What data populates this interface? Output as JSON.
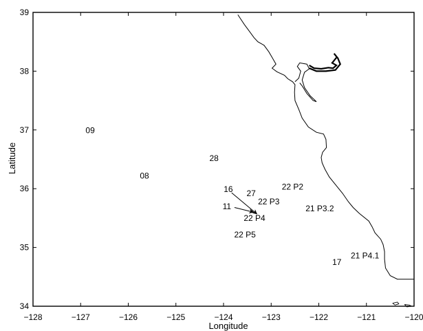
{
  "axes": {
    "xlabel": "Longitude",
    "ylabel": "Latitude",
    "xlim": [
      -128,
      -120
    ],
    "ylim": [
      34,
      39
    ],
    "x_ticks": [
      {
        "value": -128,
        "label": "−128"
      },
      {
        "value": -127,
        "label": "−127"
      },
      {
        "value": -126,
        "label": "−126"
      },
      {
        "value": -125,
        "label": "−125"
      },
      {
        "value": -124,
        "label": "−124"
      },
      {
        "value": -123,
        "label": "−123"
      },
      {
        "value": -122,
        "label": "−122"
      },
      {
        "value": -121,
        "label": "−121"
      },
      {
        "value": -120,
        "label": "−120"
      }
    ],
    "y_ticks": [
      {
        "value": 34,
        "label": "34"
      },
      {
        "value": 35,
        "label": "35"
      },
      {
        "value": 36,
        "label": "36"
      },
      {
        "value": 37,
        "label": "37"
      },
      {
        "value": 38,
        "label": "38"
      },
      {
        "value": 39,
        "label": "39"
      }
    ]
  },
  "stations": [
    {
      "id": "09",
      "label": "09",
      "lon": -126.8,
      "lat": 36.99
    },
    {
      "id": "08",
      "label": "08",
      "lon": -125.66,
      "lat": 36.22
    },
    {
      "id": "28",
      "label": "28",
      "lon": -124.2,
      "lat": 36.52
    },
    {
      "id": "16",
      "label": "16",
      "lon": -123.9,
      "lat": 35.99
    },
    {
      "id": "27",
      "label": "27",
      "lon": -123.42,
      "lat": 35.92
    },
    {
      "id": "22P2",
      "label": "22 P2",
      "lon": -122.55,
      "lat": 36.03
    },
    {
      "id": "22P3",
      "label": "22 P3",
      "lon": -123.05,
      "lat": 35.78
    },
    {
      "id": "11",
      "label": "11",
      "lon": -123.93,
      "lat": 35.7
    },
    {
      "id": "22P4",
      "label": "22 P4",
      "lon": -123.35,
      "lat": 35.5
    },
    {
      "id": "21P3.2",
      "label": "21 P3.2",
      "lon": -121.98,
      "lat": 35.66
    },
    {
      "id": "22P5",
      "label": "22 P5",
      "lon": -123.55,
      "lat": 35.22
    },
    {
      "id": "21P4.1",
      "label": "21 P4.1",
      "lon": -121.03,
      "lat": 34.86
    },
    {
      "id": "17",
      "label": "17",
      "lon": -121.62,
      "lat": 34.75
    }
  ],
  "arrows": [
    {
      "from": {
        "lon": -123.83,
        "lat": 35.93
      },
      "to": {
        "lon": -123.3,
        "lat": 35.57
      }
    },
    {
      "from": {
        "lon": -123.77,
        "lat": 35.68
      },
      "to": {
        "lon": -123.37,
        "lat": 35.6
      }
    }
  ],
  "coastline": [
    [
      -123.7,
      38.96
    ],
    [
      -123.65,
      38.9
    ],
    [
      -123.56,
      38.79
    ],
    [
      -123.45,
      38.67
    ],
    [
      -123.36,
      38.57
    ],
    [
      -123.28,
      38.5
    ],
    [
      -123.15,
      38.44
    ],
    [
      -123.05,
      38.33
    ],
    [
      -122.97,
      38.22
    ],
    [
      -122.9,
      38.12
    ],
    [
      -122.98,
      38.05
    ],
    [
      -122.88,
      37.99
    ],
    [
      -122.72,
      37.93
    ],
    [
      -122.65,
      37.87
    ],
    [
      -122.55,
      37.82
    ],
    [
      -122.5,
      37.77
    ],
    [
      -122.51,
      37.64
    ],
    [
      -122.5,
      37.5
    ],
    [
      -122.42,
      37.35
    ],
    [
      -122.35,
      37.2
    ],
    [
      -122.22,
      37.05
    ],
    [
      -122.05,
      36.96
    ],
    [
      -121.9,
      36.93
    ],
    [
      -121.85,
      36.84
    ],
    [
      -121.84,
      36.7
    ],
    [
      -121.92,
      36.62
    ],
    [
      -121.95,
      36.53
    ],
    [
      -121.93,
      36.44
    ],
    [
      -121.87,
      36.33
    ],
    [
      -121.78,
      36.2
    ],
    [
      -121.62,
      36.04
    ],
    [
      -121.5,
      35.92
    ],
    [
      -121.38,
      35.78
    ],
    [
      -121.28,
      35.68
    ],
    [
      -121.15,
      35.58
    ],
    [
      -120.95,
      35.45
    ],
    [
      -120.88,
      35.35
    ],
    [
      -120.82,
      35.25
    ],
    [
      -120.7,
      35.14
    ],
    [
      -120.65,
      35.05
    ],
    [
      -120.62,
      34.93
    ],
    [
      -120.62,
      34.8
    ],
    [
      -120.6,
      34.65
    ],
    [
      -120.5,
      34.52
    ],
    [
      -120.35,
      34.46
    ],
    [
      -120.2,
      34.46
    ],
    [
      -120.0,
      34.46
    ]
  ],
  "bay": [
    [
      -122.5,
      37.82
    ],
    [
      -122.42,
      37.88
    ],
    [
      -122.38,
      38.0
    ],
    [
      -122.45,
      38.08
    ],
    [
      -122.4,
      38.14
    ],
    [
      -122.25,
      38.12
    ],
    [
      -122.2,
      38.04
    ],
    [
      -122.3,
      37.98
    ],
    [
      -122.35,
      37.85
    ],
    [
      -122.3,
      37.72
    ],
    [
      -122.18,
      37.58
    ],
    [
      -122.05,
      37.48
    ],
    [
      -122.12,
      37.5
    ],
    [
      -122.25,
      37.62
    ],
    [
      -122.35,
      37.75
    ],
    [
      -122.4,
      37.8
    ]
  ],
  "delta": [
    [
      -122.2,
      38.1
    ],
    [
      -122.1,
      38.05
    ],
    [
      -121.95,
      38.04
    ],
    [
      -121.8,
      38.06
    ],
    [
      -121.7,
      38.05
    ],
    [
      -121.63,
      38.1
    ],
    [
      -121.72,
      38.14
    ],
    [
      -121.62,
      38.24
    ],
    [
      -121.68,
      38.3
    ],
    [
      -121.6,
      38.22
    ],
    [
      -121.55,
      38.12
    ],
    [
      -121.65,
      38.02
    ],
    [
      -121.85,
      38.0
    ],
    [
      -122.05,
      38.0
    ],
    [
      -122.2,
      38.05
    ]
  ],
  "islands": [
    [
      [
        -120.45,
        34.05
      ],
      [
        -120.35,
        34.07
      ],
      [
        -120.32,
        34.04
      ],
      [
        -120.4,
        34.02
      ],
      [
        -120.45,
        34.05
      ]
    ],
    [
      [
        -120.2,
        34.03
      ],
      [
        -120.1,
        34.02
      ],
      [
        -120.05,
        34.0
      ],
      [
        -120.15,
        33.99
      ],
      [
        -120.2,
        34.03
      ]
    ]
  ]
}
